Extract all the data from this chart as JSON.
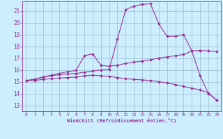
{
  "xlabel": "Windchill (Refroidissement éolien,°C)",
  "xlim": [
    -0.5,
    23.5
  ],
  "ylim": [
    12.5,
    21.8
  ],
  "yticks": [
    13,
    14,
    15,
    16,
    17,
    18,
    19,
    20,
    21
  ],
  "xticks": [
    0,
    1,
    2,
    3,
    4,
    5,
    6,
    7,
    8,
    9,
    10,
    11,
    12,
    13,
    14,
    15,
    16,
    17,
    18,
    19,
    20,
    21,
    22,
    23
  ],
  "bg_color": "#cceeff",
  "line_color": "#993399",
  "grid_color": "#99bbcc",
  "lines": [
    {
      "x": [
        0,
        1,
        2,
        3,
        4,
        5,
        6,
        7,
        8,
        9,
        10,
        11,
        12,
        13,
        14,
        15,
        16,
        17,
        18,
        19,
        20,
        21,
        22,
        23
      ],
      "y": [
        15.1,
        15.2,
        15.4,
        15.5,
        15.6,
        15.65,
        15.7,
        15.8,
        15.9,
        16.0,
        16.05,
        18.6,
        21.1,
        21.4,
        21.55,
        21.6,
        19.9,
        18.85,
        18.85,
        19.0,
        17.6,
        15.5,
        14.0,
        13.45
      ]
    },
    {
      "x": [
        0,
        1,
        2,
        3,
        4,
        5,
        6,
        7,
        8,
        9,
        10,
        11,
        12,
        13,
        14,
        15,
        16,
        17,
        18,
        19,
        20,
        21,
        22,
        23
      ],
      "y": [
        15.1,
        15.2,
        15.4,
        15.55,
        15.7,
        15.85,
        15.95,
        17.2,
        17.35,
        16.4,
        16.3,
        16.4,
        16.55,
        16.65,
        16.75,
        16.85,
        17.0,
        17.1,
        17.2,
        17.3,
        17.6,
        17.65,
        17.6,
        17.55
      ]
    },
    {
      "x": [
        0,
        1,
        2,
        3,
        4,
        5,
        6,
        7,
        8,
        9,
        10,
        11,
        12,
        13,
        14,
        15,
        16,
        17,
        18,
        19,
        20,
        21,
        22,
        23
      ],
      "y": [
        15.1,
        15.1,
        15.2,
        15.25,
        15.3,
        15.35,
        15.4,
        15.5,
        15.55,
        15.5,
        15.45,
        15.35,
        15.25,
        15.2,
        15.15,
        15.1,
        15.0,
        14.9,
        14.75,
        14.6,
        14.45,
        14.3,
        14.05,
        13.45
      ]
    }
  ]
}
